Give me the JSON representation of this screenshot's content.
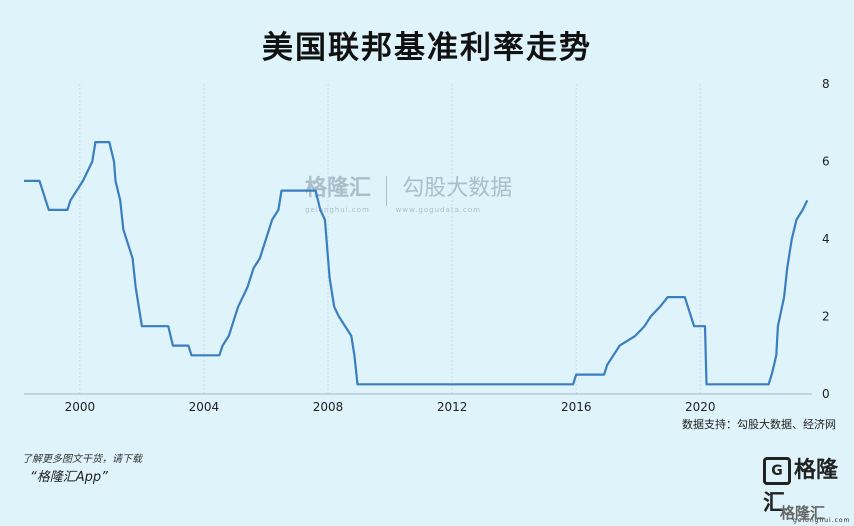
{
  "title": "美国联邦基准利率走势",
  "source": "数据支持：勾股大数据、经济网",
  "footer": {
    "line1": "了解更多图文干货，请下载",
    "line2": "“格隆汇App”"
  },
  "watermark": {
    "brand": "格隆汇",
    "brand_sub": "gelonghui.com",
    "partner": "勾股大数据",
    "partner_sub": "www.gogudata.com"
  },
  "logo": {
    "text": "格隆汇",
    "icon": "g-logo-icon",
    "sub": "gelonghui.com"
  },
  "bottom_watermark": "格隆汇",
  "colors": {
    "background": "#dff3fb",
    "line": "#3a7ebf",
    "grid": "#c6dde8"
  },
  "chart_data": {
    "type": "line",
    "title": "美国联邦基准利率走势",
    "xlabel": "",
    "ylabel": "",
    "xlim": [
      1998.2,
      2023.6
    ],
    "ylim": [
      0,
      8
    ],
    "xticks": [
      2000,
      2004,
      2008,
      2012,
      2016,
      2020
    ],
    "yticks": [
      0,
      2,
      4,
      6,
      8
    ],
    "y_axis_position": "right",
    "grid": "vertical",
    "series": [
      {
        "values": [
          [
            1998.2,
            5.5
          ],
          [
            1998.7,
            5.5
          ],
          [
            1998.8,
            5.25
          ],
          [
            1998.9,
            5.0
          ],
          [
            1999.0,
            4.75
          ],
          [
            1999.6,
            4.75
          ],
          [
            1999.7,
            5.0
          ],
          [
            1999.9,
            5.25
          ],
          [
            2000.1,
            5.5
          ],
          [
            2000.4,
            6.0
          ],
          [
            2000.5,
            6.5
          ],
          [
            2000.95,
            6.5
          ],
          [
            2001.1,
            6.0
          ],
          [
            2001.15,
            5.5
          ],
          [
            2001.3,
            5.0
          ],
          [
            2001.4,
            4.25
          ],
          [
            2001.6,
            3.75
          ],
          [
            2001.7,
            3.5
          ],
          [
            2001.8,
            2.75
          ],
          [
            2001.9,
            2.25
          ],
          [
            2002.0,
            1.75
          ],
          [
            2002.85,
            1.75
          ],
          [
            2003.0,
            1.25
          ],
          [
            2003.5,
            1.25
          ],
          [
            2003.6,
            1.0
          ],
          [
            2004.5,
            1.0
          ],
          [
            2004.6,
            1.25
          ],
          [
            2004.8,
            1.5
          ],
          [
            2004.9,
            1.75
          ],
          [
            2005.1,
            2.25
          ],
          [
            2005.4,
            2.75
          ],
          [
            2005.6,
            3.25
          ],
          [
            2005.8,
            3.5
          ],
          [
            2006.0,
            4.0
          ],
          [
            2006.2,
            4.5
          ],
          [
            2006.4,
            4.75
          ],
          [
            2006.5,
            5.25
          ],
          [
            2007.6,
            5.25
          ],
          [
            2007.75,
            4.75
          ],
          [
            2007.9,
            4.5
          ],
          [
            2008.05,
            3.0
          ],
          [
            2008.2,
            2.25
          ],
          [
            2008.35,
            2.0
          ],
          [
            2008.75,
            1.5
          ],
          [
            2008.85,
            1.0
          ],
          [
            2008.95,
            0.25
          ],
          [
            2015.9,
            0.25
          ],
          [
            2016.0,
            0.5
          ],
          [
            2016.9,
            0.5
          ],
          [
            2017.0,
            0.75
          ],
          [
            2017.2,
            1.0
          ],
          [
            2017.4,
            1.25
          ],
          [
            2017.9,
            1.5
          ],
          [
            2018.2,
            1.75
          ],
          [
            2018.4,
            2.0
          ],
          [
            2018.7,
            2.25
          ],
          [
            2018.95,
            2.5
          ],
          [
            2019.5,
            2.5
          ],
          [
            2019.6,
            2.25
          ],
          [
            2019.7,
            2.0
          ],
          [
            2019.8,
            1.75
          ],
          [
            2020.15,
            1.75
          ],
          [
            2020.2,
            0.25
          ],
          [
            2022.2,
            0.25
          ],
          [
            2022.3,
            0.5
          ],
          [
            2022.45,
            1.0
          ],
          [
            2022.5,
            1.75
          ],
          [
            2022.7,
            2.5
          ],
          [
            2022.8,
            3.25
          ],
          [
            2022.95,
            4.0
          ],
          [
            2023.1,
            4.5
          ],
          [
            2023.3,
            4.75
          ],
          [
            2023.45,
            5.0
          ]
        ]
      }
    ]
  }
}
